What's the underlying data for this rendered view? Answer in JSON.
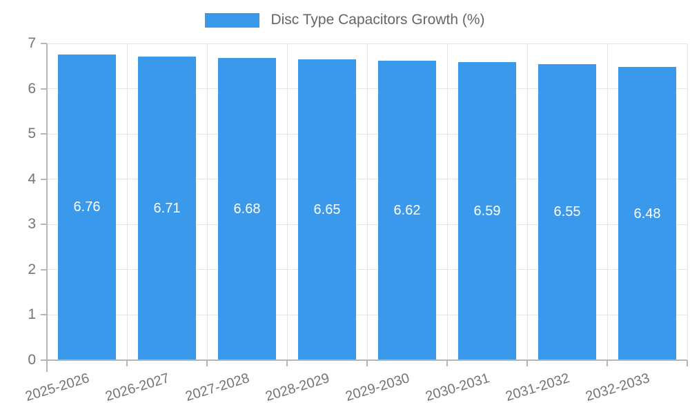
{
  "chart_data": {
    "type": "bar",
    "title": "Disc Type Capacitors Growth (%)",
    "legend": {
      "position": "top",
      "label": "Disc Type Capacitors Growth (%)"
    },
    "categories": [
      "2025-2026",
      "2026-2027",
      "2027-2028",
      "2028-2029",
      "2029-2030",
      "2030-2031",
      "2031-2032",
      "2032-2033"
    ],
    "values": [
      6.76,
      6.71,
      6.68,
      6.65,
      6.62,
      6.59,
      6.55,
      6.48
    ],
    "value_labels": [
      "6.76",
      "6.71",
      "6.68",
      "6.65",
      "6.62",
      "6.59",
      "6.55",
      "6.48"
    ],
    "xlabel": "",
    "ylabel": "",
    "ylim": [
      0,
      7
    ],
    "yticks": [
      0,
      1,
      2,
      3,
      4,
      5,
      6,
      7
    ],
    "grid": true,
    "bar_color": "#3b99ec",
    "bar_label_color": "#ffffff",
    "gridline_color": "#e5e5e5",
    "axis_color": "#b5b5b5",
    "tick_label_color": "#757575",
    "title_color": "#666666"
  }
}
